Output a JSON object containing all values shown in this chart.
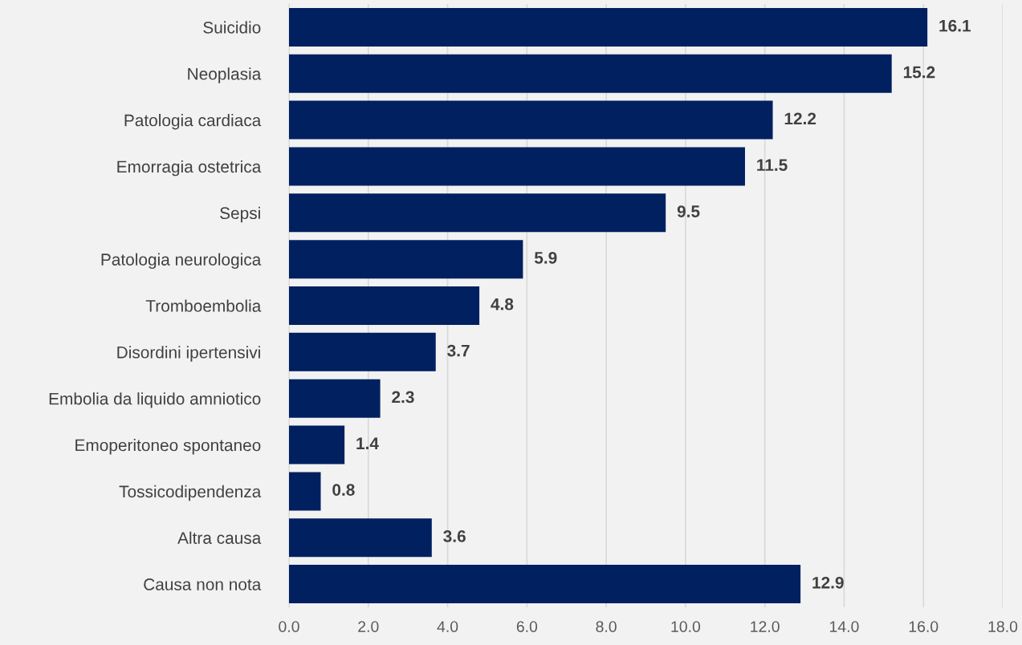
{
  "chart_data": {
    "type": "bar",
    "orientation": "horizontal",
    "categories": [
      "Suicidio",
      "Neoplasia",
      "Patologia cardiaca",
      "Emorragia ostetrica",
      "Sepsi",
      "Patologia neurologica",
      "Tromboembolia",
      "Disordini ipertensivi",
      "Embolia da liquido amniotico",
      "Emoperitoneo spontaneo",
      "Tossicodipendenza",
      "Altra causa",
      "Causa non nota"
    ],
    "values": [
      16.1,
      15.2,
      12.2,
      11.5,
      9.5,
      5.9,
      4.8,
      3.7,
      2.3,
      1.4,
      0.8,
      3.6,
      12.9
    ],
    "color": "#002060",
    "xlim": [
      0,
      18
    ],
    "xticks": [
      {
        "value": 0,
        "label": "0.0"
      },
      {
        "value": 2,
        "label": "2.0"
      },
      {
        "value": 4,
        "label": "4.0"
      },
      {
        "value": 6,
        "label": "6.0"
      },
      {
        "value": 8,
        "label": "8.0"
      },
      {
        "value": 10,
        "label": "10.0"
      },
      {
        "value": 12,
        "label": "12.0"
      },
      {
        "value": 14,
        "label": "14.0"
      },
      {
        "value": 16,
        "label": "16.0"
      },
      {
        "value": 18,
        "label": "18.0"
      }
    ],
    "grid": "x",
    "data_labels": true
  }
}
